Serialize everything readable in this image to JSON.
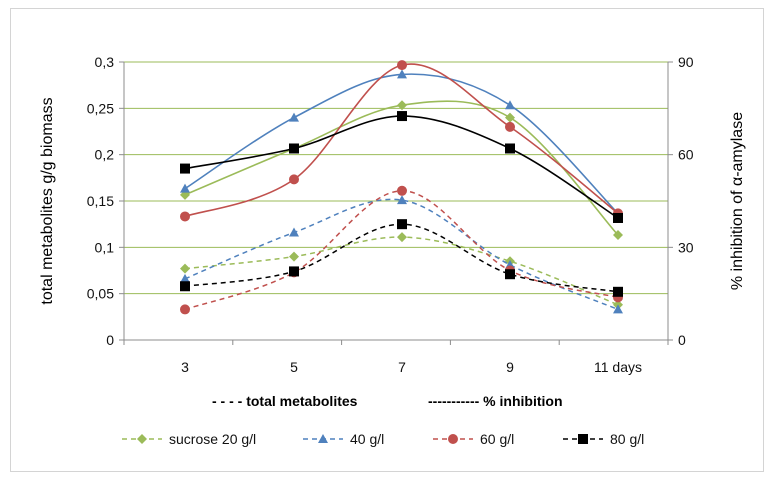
{
  "chart_data": {
    "type": "line",
    "categories": [
      "3",
      "5",
      "7",
      "9",
      "11 days"
    ],
    "y_left": {
      "label": "total metabolites g/g biomass",
      "ylim": [
        0,
        0.3
      ],
      "ticks": [
        "0",
        "0,05",
        "0,1",
        "0,15",
        "0,2",
        "0,25",
        "0,3"
      ]
    },
    "y_right": {
      "label": "% inhibition of α-amylase",
      "ylim": [
        0,
        90
      ],
      "ticks": [
        "0",
        "30",
        "60",
        "90"
      ]
    },
    "grid": "horizontal",
    "notes": {
      "dashed": "- - - - total metabolites",
      "solid": "----------- % inhibition"
    },
    "legend_position": "bottom",
    "series": [
      {
        "name": "sucrose 20 g/l",
        "color": "#9bbb59",
        "marker": "diamond",
        "total_metabolites": [
          0.077,
          0.09,
          0.111,
          0.085,
          0.038
        ],
        "inhibition_pct": [
          47,
          62,
          76,
          72,
          34
        ]
      },
      {
        "name": "40 g/l",
        "color": "#4f81bd",
        "marker": "triangle",
        "total_metabolites": [
          0.066,
          0.116,
          0.151,
          0.081,
          0.033
        ],
        "inhibition_pct": [
          49,
          72,
          86,
          76,
          41
        ]
      },
      {
        "name": "60 g/l",
        "color": "#c0504d",
        "marker": "circle",
        "total_metabolites": [
          0.033,
          0.073,
          0.161,
          0.075,
          0.046
        ],
        "inhibition_pct": [
          40,
          52,
          89,
          69,
          41
        ]
      },
      {
        "name": "80 g/l",
        "color": "#000000",
        "marker": "square",
        "total_metabolites": [
          0.058,
          0.074,
          0.125,
          0.071,
          0.052
        ],
        "inhibition_pct": [
          55.5,
          62,
          72.5,
          62,
          39.5
        ]
      }
    ]
  }
}
